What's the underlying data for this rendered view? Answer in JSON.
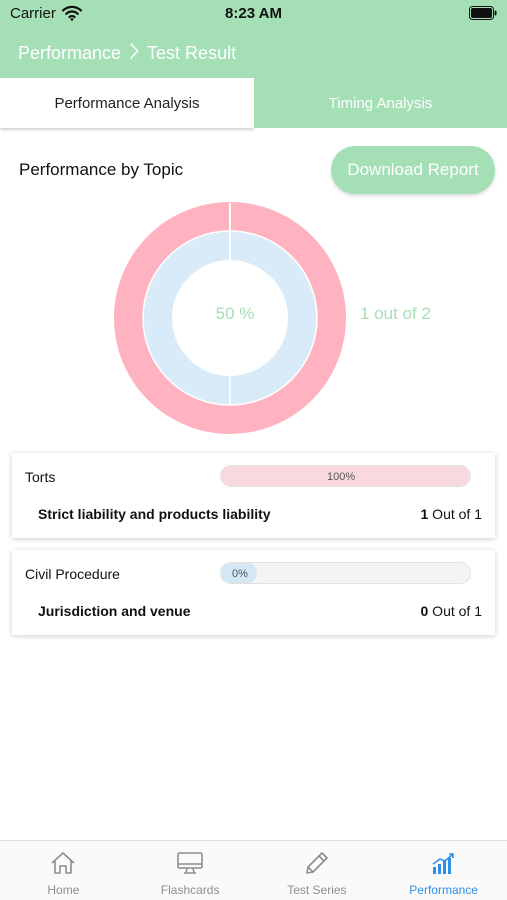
{
  "status_bar": {
    "carrier": "Carrier",
    "time": "8:23 AM"
  },
  "nav": {
    "crumb_parent": "Performance",
    "crumb_current": "Test Result"
  },
  "tabs": [
    {
      "label": "Performance Analysis",
      "active": true
    },
    {
      "label": "Timing Analysis",
      "active": false
    }
  ],
  "section": {
    "title": "Performance by Topic",
    "download_label": "Download Report"
  },
  "chart": {
    "percent_label": "50 %",
    "score_label": "1 out of 2",
    "correct": 1,
    "total": 2
  },
  "topics": [
    {
      "name": "Torts",
      "progress_label": "100%",
      "progress": 1.0,
      "subtopic": "Strict liability and products liability",
      "score_num": "1",
      "score_suffix": " Out of 1"
    },
    {
      "name": "Civil Procedure",
      "progress_label": "0%",
      "progress": 0.0,
      "subtopic": "Jurisdiction and venue",
      "score_num": "0",
      "score_suffix": " Out of 1"
    }
  ],
  "tab_bar": [
    {
      "label": "Home",
      "icon": "home-icon",
      "active": false
    },
    {
      "label": "Flashcards",
      "icon": "monitor-icon",
      "active": false
    },
    {
      "label": "Test Series",
      "icon": "pencil-icon",
      "active": false
    },
    {
      "label": "Performance",
      "icon": "chart-icon",
      "active": true
    }
  ],
  "colors": {
    "accent": "#a5dfb6",
    "pink": "#ffb3c1",
    "light_blue": "#d9ebf8",
    "active_tab": "#2f8fe6"
  }
}
